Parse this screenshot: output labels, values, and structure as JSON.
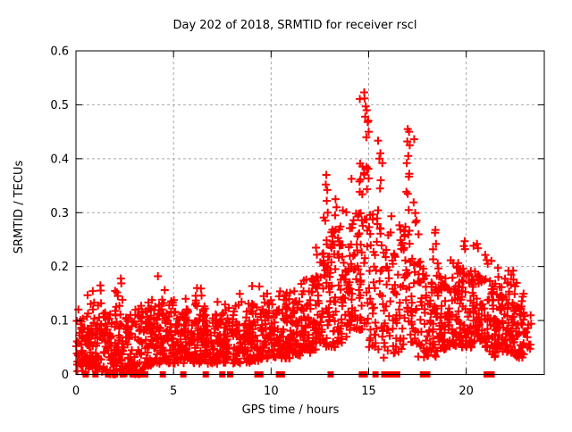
{
  "chart_data": {
    "type": "scatter",
    "title": "Day 202 of 2018, SRMTID for receiver rscl",
    "xlabel": "GPS time / hours",
    "ylabel": "SRMTID / TECUs",
    "xlim": [
      0,
      24
    ],
    "ylim": [
      0,
      0.6
    ],
    "xticks": [
      0,
      5,
      10,
      15,
      20
    ],
    "xtick_labels": [
      "0",
      "5",
      "10",
      "15",
      "20"
    ],
    "yticks": [
      0,
      0.1,
      0.2,
      0.3,
      0.4,
      0.5,
      0.6
    ],
    "ytick_labels": [
      "0",
      "0.1",
      "0.2",
      "0.3",
      "0.4",
      "0.5",
      "0.6"
    ],
    "grid": true,
    "legend": "none",
    "marker": "plus",
    "marker_color": "#ff0000",
    "grid_color": "#a6a6a6",
    "axis_color": "#000000",
    "background_color": "#ffffff",
    "scatter_model": {
      "comment": "binned envelope of the ~2000-point 30s-cadence scatter: [hour_center, n_points, y_min, y_typical_max, y_spike_max], bin half-width 0.25 h",
      "seed": 202,
      "spike_prob": 0.07,
      "skew_exponent": 1.3,
      "bins": [
        [
          0.25,
          48,
          0.005,
          0.1,
          0.14
        ],
        [
          0.75,
          48,
          0.01,
          0.11,
          0.155
        ],
        [
          1.25,
          48,
          0.005,
          0.12,
          0.165
        ],
        [
          1.75,
          44,
          0.0,
          0.1,
          0.13
        ],
        [
          2.25,
          46,
          0.005,
          0.12,
          0.178
        ],
        [
          2.75,
          42,
          0.0,
          0.1,
          0.125
        ],
        [
          3.25,
          42,
          0.0,
          0.11,
          0.13
        ],
        [
          3.75,
          46,
          0.015,
          0.12,
          0.15
        ],
        [
          4.25,
          46,
          0.02,
          0.12,
          0.182
        ],
        [
          4.75,
          48,
          0.02,
          0.13,
          0.16
        ],
        [
          5.25,
          46,
          0.02,
          0.12,
          0.15
        ],
        [
          5.75,
          46,
          0.02,
          0.12,
          0.145
        ],
        [
          6.25,
          46,
          0.02,
          0.13,
          0.165
        ],
        [
          6.75,
          46,
          0.02,
          0.12,
          0.15
        ],
        [
          7.25,
          46,
          0.02,
          0.12,
          0.145
        ],
        [
          7.75,
          46,
          0.02,
          0.12,
          0.14
        ],
        [
          8.25,
          46,
          0.02,
          0.12,
          0.15
        ],
        [
          8.75,
          46,
          0.02,
          0.12,
          0.145
        ],
        [
          9.25,
          46,
          0.025,
          0.13,
          0.165
        ],
        [
          9.75,
          46,
          0.03,
          0.13,
          0.15
        ],
        [
          10.25,
          46,
          0.03,
          0.13,
          0.16
        ],
        [
          10.75,
          46,
          0.03,
          0.14,
          0.17
        ],
        [
          11.25,
          46,
          0.035,
          0.14,
          0.18
        ],
        [
          11.75,
          46,
          0.04,
          0.16,
          0.195
        ],
        [
          12.25,
          46,
          0.045,
          0.18,
          0.24
        ],
        [
          12.75,
          46,
          0.05,
          0.24,
          0.37
        ],
        [
          13.25,
          46,
          0.05,
          0.26,
          0.33
        ],
        [
          13.75,
          42,
          0.05,
          0.24,
          0.31
        ],
        [
          14.25,
          42,
          0.08,
          0.3,
          0.39
        ],
        [
          14.75,
          46,
          0.08,
          0.4,
          0.52
        ],
        [
          15.25,
          36,
          0.05,
          0.3,
          0.44
        ],
        [
          15.75,
          30,
          0.03,
          0.28,
          0.41
        ],
        [
          16.25,
          30,
          0.03,
          0.25,
          0.36
        ],
        [
          16.75,
          36,
          0.04,
          0.28,
          0.4
        ],
        [
          17.25,
          36,
          0.05,
          0.3,
          0.455
        ],
        [
          17.75,
          36,
          0.03,
          0.2,
          0.28
        ],
        [
          18.25,
          42,
          0.03,
          0.18,
          0.27
        ],
        [
          18.75,
          46,
          0.04,
          0.18,
          0.24
        ],
        [
          19.25,
          46,
          0.05,
          0.18,
          0.225
        ],
        [
          19.75,
          46,
          0.05,
          0.2,
          0.26
        ],
        [
          20.25,
          46,
          0.05,
          0.19,
          0.25
        ],
        [
          20.75,
          46,
          0.05,
          0.18,
          0.23
        ],
        [
          21.25,
          46,
          0.03,
          0.17,
          0.22
        ],
        [
          21.75,
          46,
          0.03,
          0.16,
          0.2
        ],
        [
          22.25,
          46,
          0.04,
          0.17,
          0.2
        ],
        [
          22.75,
          42,
          0.03,
          0.14,
          0.18
        ],
        [
          23.1,
          16,
          0.03,
          0.12,
          0.15
        ]
      ]
    },
    "feature_points": [
      [
        14.77,
        0.523
      ],
      [
        14.79,
        0.512
      ],
      [
        14.85,
        0.497
      ],
      [
        14.9,
        0.49
      ],
      [
        14.82,
        0.478
      ],
      [
        14.95,
        0.468
      ],
      [
        15.0,
        0.45
      ],
      [
        14.88,
        0.44
      ],
      [
        17.0,
        0.455
      ],
      [
        17.07,
        0.45
      ],
      [
        16.98,
        0.432
      ],
      [
        17.1,
        0.425
      ],
      [
        17.03,
        0.405
      ],
      [
        16.95,
        0.392
      ],
      [
        17.08,
        0.372
      ],
      [
        17.0,
        0.335
      ],
      [
        17.05,
        0.305
      ],
      [
        15.6,
        0.41
      ],
      [
        15.55,
        0.4
      ],
      [
        15.7,
        0.392
      ],
      [
        15.62,
        0.36
      ],
      [
        15.58,
        0.345
      ],
      [
        12.83,
        0.37
      ],
      [
        12.8,
        0.352
      ],
      [
        12.88,
        0.342
      ],
      [
        12.85,
        0.322
      ],
      [
        12.9,
        0.3
      ],
      [
        12.78,
        0.285
      ],
      [
        13.3,
        0.325
      ],
      [
        13.35,
        0.31
      ],
      [
        13.28,
        0.295
      ],
      [
        18.42,
        0.268
      ],
      [
        18.45,
        0.242
      ],
      [
        19.92,
        0.247
      ],
      [
        19.88,
        0.238
      ],
      [
        20.55,
        0.242
      ],
      [
        20.6,
        0.234
      ],
      [
        12.3,
        0.235
      ],
      [
        12.35,
        0.222
      ],
      [
        11.8,
        0.176
      ],
      [
        11.55,
        0.168
      ],
      [
        2.3,
        0.178
      ],
      [
        4.2,
        0.182
      ],
      [
        1.25,
        0.165
      ],
      [
        9.4,
        0.163
      ],
      [
        6.2,
        0.16
      ],
      [
        21.05,
        0.212
      ],
      [
        21.1,
        0.205
      ],
      [
        22.3,
        0.185
      ]
    ],
    "zero_markers": {
      "comment": "solid red squares sitting on y=0 (dropout/zero values), x in hours",
      "x": [
        0.5,
        1.0,
        1.65,
        2.0,
        2.4,
        2.9,
        3.1,
        3.3,
        3.55,
        4.45,
        5.5,
        6.65,
        7.5,
        7.9,
        9.3,
        9.45,
        10.4,
        10.55,
        13.05,
        14.65,
        14.8,
        15.35,
        15.8,
        15.9,
        15.98,
        16.06,
        16.14,
        16.22,
        16.3,
        16.38,
        16.46,
        17.78,
        17.9,
        18.0,
        21.05,
        21.3
      ]
    }
  }
}
